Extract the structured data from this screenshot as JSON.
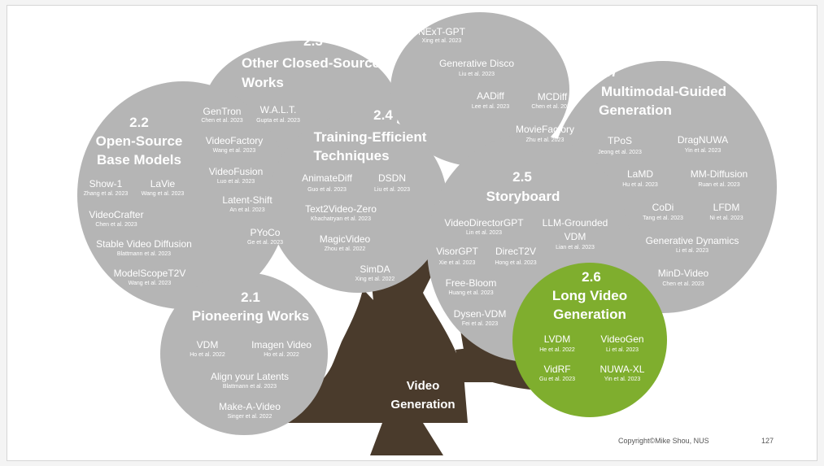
{
  "colors": {
    "trunk": "#4a3b2c",
    "bubble": "#b5b5b5",
    "highlight": "#7fae2e",
    "text": "#ffffff"
  },
  "trunk_label": [
    "Video",
    "Generation"
  ],
  "sections": {
    "s21": {
      "number": "2.1",
      "title": [
        "Pioneering Works"
      ]
    },
    "s22": {
      "number": "2.2",
      "title": [
        "Open-Source",
        "Base Models"
      ]
    },
    "s23": {
      "number": "2.3",
      "title": [
        "Other Closed-Source",
        "Works"
      ]
    },
    "s24": {
      "number": "2.4",
      "title": [
        "Training-Efficient",
        "Techniques"
      ]
    },
    "s25": {
      "number": "2.5",
      "title": [
        "Storyboard"
      ]
    },
    "s26": {
      "number": "2.6",
      "title": [
        "Long Video",
        "Generation"
      ]
    },
    "s27": {
      "number": "2.7",
      "title": [
        "Multimodal-Guided",
        "Generation"
      ]
    }
  },
  "methods": {
    "vdm": {
      "name": "VDM",
      "cite": "Ho et al. 2022"
    },
    "imagen_video": {
      "name": "Imagen Video",
      "cite": "Ho et al. 2022"
    },
    "align_latents": {
      "name": "Align your Latents",
      "cite": "Blattmann et al. 2023"
    },
    "make_a_video": {
      "name": "Make-A-Video",
      "cite": "Singer et al. 2022"
    },
    "show1": {
      "name": "Show-1",
      "cite": "Zhang et al. 2023"
    },
    "lavie": {
      "name": "LaVie",
      "cite": "Wang et al. 2023"
    },
    "videocrafter": {
      "name": "VideoCrafter",
      "cite": "Chen et al. 2023"
    },
    "svd": {
      "name": "Stable Video Diffusion",
      "cite": "Blattmann et al. 2023"
    },
    "modelscope": {
      "name": "ModelScopeT2V",
      "cite": "Wang et al. 2023"
    },
    "gentron": {
      "name": "GenTron",
      "cite": "Chen et al. 2023"
    },
    "walt": {
      "name": "W.A.L.T.",
      "cite": "Gupta et al. 2023"
    },
    "videofactory": {
      "name": "VideoFactory",
      "cite": "Wang et al. 2023"
    },
    "videofusion": {
      "name": "VideoFusion",
      "cite": "Luo et al. 2023"
    },
    "latent_shift": {
      "name": "Latent-Shift",
      "cite": "An et al. 2023"
    },
    "pyoco": {
      "name": "PYoCo",
      "cite": "Ge et al. 2023"
    },
    "animatediff": {
      "name": "AnimateDiff",
      "cite": "Guo et al. 2023"
    },
    "dsdn": {
      "name": "DSDN",
      "cite": "Liu et al. 2023"
    },
    "text2video_zero": {
      "name": "Text2Video-Zero",
      "cite": "Khachatryan et al. 2023"
    },
    "magicvideo": {
      "name": "MagicVideo",
      "cite": "Zhou et al. 2022"
    },
    "simda": {
      "name": "SimDA",
      "cite": "Xing et al. 2022"
    },
    "next_gpt": {
      "name": "NExT-GPT",
      "cite": "Xing et al. 2023"
    },
    "gen_disco": {
      "name": "Generative Disco",
      "cite": "Liu et al. 2023"
    },
    "aadiff": {
      "name": "AADiff",
      "cite": "Lee et al. 2023"
    },
    "mcdiff": {
      "name": "MCDiff",
      "cite": "Chen et al. 2023"
    },
    "moviefactory": {
      "name": "MovieFactory",
      "cite": "Zhu et al. 2023"
    },
    "vdgpt": {
      "name": "VideoDirectorGPT",
      "cite": "Lin et al. 2023"
    },
    "llm_grounded": {
      "name": [
        "LLM-Grounded",
        "VDM"
      ],
      "cite": "Lian et al. 2023"
    },
    "visorgpt": {
      "name": "VisorGPT",
      "cite": "Xie et al. 2023"
    },
    "direct2v": {
      "name": "DirecT2V",
      "cite": "Hong et al. 2023"
    },
    "free_bloom": {
      "name": "Free-Bloom",
      "cite": "Huang et al. 2023"
    },
    "dysen_vdm": {
      "name": "Dysen-VDM",
      "cite": "Fei et al. 2023"
    },
    "lvdm": {
      "name": "LVDM",
      "cite": "He et al. 2022"
    },
    "videogen": {
      "name": "VideoGen",
      "cite": "Li et al. 2023"
    },
    "vidrf": {
      "name": "VidRF",
      "cite": "Gu et al. 2023"
    },
    "nuwa_xl": {
      "name": "NUWA-XL",
      "cite": "Yin et al. 2023"
    },
    "tpos": {
      "name": "TPoS",
      "cite": "Jeong et al. 2023"
    },
    "dragnuwa": {
      "name": "DragNUWA",
      "cite": "Yin et al. 2023"
    },
    "lamd": {
      "name": "LaMD",
      "cite": "Hu et al. 2023"
    },
    "mm_diffusion": {
      "name": "MM-Diffusion",
      "cite": "Ruan et al. 2023"
    },
    "codi": {
      "name": "CoDi",
      "cite": "Tang et al. 2023"
    },
    "lfdm": {
      "name": "LFDM",
      "cite": "Ni et al. 2023"
    },
    "gen_dynamics": {
      "name": "Generative Dynamics",
      "cite": "Li et al. 2023"
    },
    "mind_video": {
      "name": "MinD-Video",
      "cite": "Chen et al. 2023"
    }
  },
  "footer": {
    "copyright": "Copyright©Mike Shou, NUS",
    "page_number": "127"
  }
}
